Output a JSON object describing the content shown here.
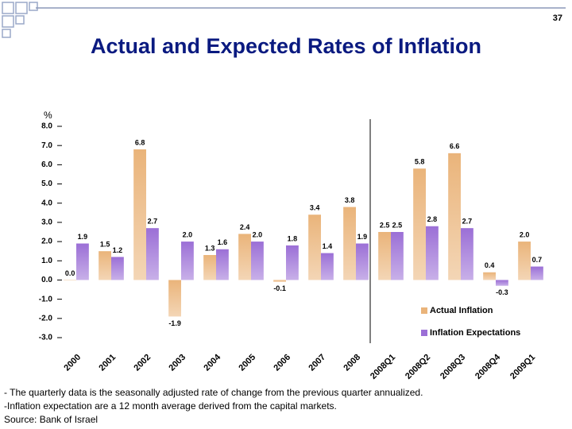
{
  "page_number": "37",
  "notes": [
    "- The quarterly data is the seasonally adjusted rate of change from the previous quarter annualized.",
    "-Inflation expectation are a 12 month average derived from the capital markets.",
    "Source: Bank of Israel"
  ],
  "chart_data": {
    "type": "bar",
    "title": "Actual and Expected Rates of Inflation",
    "y_label": "%",
    "categories": [
      "2000",
      "2001",
      "2002",
      "2003",
      "2004",
      "2005",
      "2006",
      "2007",
      "2008",
      "2008Q1",
      "2008Q2",
      "2008Q3",
      "2008Q4",
      "2009Q1"
    ],
    "series": [
      {
        "name": "Actual Inflation",
        "color": "#eab47a",
        "values": [
          0,
          1.5,
          6.8,
          -1.9,
          1.3,
          2.4,
          -0.1,
          3.4,
          3.8,
          2.5,
          5.8,
          6.6,
          0.4,
          2
        ],
        "value_labels": [
          "0.0",
          "1.5",
          "6.8",
          "-1.9",
          "1.3",
          "2.4",
          "-0.1",
          "3.4",
          "3.8",
          "2.5",
          "5.8",
          "6.6",
          "0.4",
          "2.0"
        ]
      },
      {
        "name": "Inflation Expectations",
        "color": "#9b6fd6",
        "values": [
          1.9,
          1.2,
          2.7,
          2,
          1.6,
          2,
          1.8,
          1.4,
          1.9,
          2.5,
          2.8,
          2.7,
          -0.3,
          0.7
        ],
        "value_labels": [
          "1.9",
          "1.2",
          "2.7",
          "2.0",
          "1.6",
          "2.0",
          "1.8",
          "1.4",
          "1.9",
          "2.5",
          "2.8",
          "2.7",
          "-0.3",
          "0.7"
        ]
      }
    ],
    "ylim": [
      -3,
      8
    ],
    "yticks": [
      {
        "value": -3,
        "label": "-3.0"
      },
      {
        "value": -2,
        "label": "-2.0"
      },
      {
        "value": -1,
        "label": "-1.0"
      },
      {
        "value": 0,
        "label": "0.0"
      },
      {
        "value": 1,
        "label": "1.0"
      },
      {
        "value": 2,
        "label": "2.0"
      },
      {
        "value": 3,
        "label": "3.0"
      },
      {
        "value": 4,
        "label": "4.0"
      },
      {
        "value": 5,
        "label": "5.0"
      },
      {
        "value": 6,
        "label": "6.0"
      },
      {
        "value": 7,
        "label": "7.0"
      },
      {
        "value": 8,
        "label": "8.0"
      }
    ]
  }
}
